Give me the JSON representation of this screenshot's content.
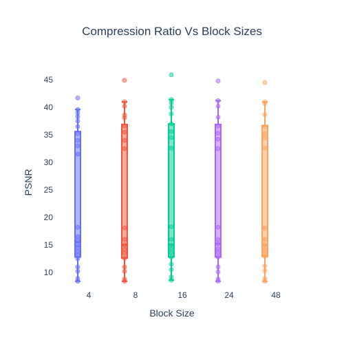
{
  "chart_data": {
    "type": "box",
    "title": "Compression Ratio Vs Block Sizes",
    "xlabel": "Block Size",
    "ylabel": "PSNR",
    "categories": [
      "4",
      "8",
      "16",
      "24",
      "48"
    ],
    "yticks": [
      10,
      15,
      20,
      25,
      30,
      35,
      40,
      45
    ],
    "ylim": [
      7,
      47
    ],
    "grid": false,
    "legend": "none",
    "series": [
      {
        "category": "4",
        "color": "#636efa",
        "q1": 12.8,
        "median": 15.5,
        "q3": 35.6,
        "lower": 8.4,
        "upper": 39.6,
        "points": [
          8.4,
          8.9,
          10.2,
          11.0,
          12.5,
          13.2,
          13.8,
          14.5,
          15.0,
          15.8,
          16.5,
          18.2,
          31.5,
          33.0,
          34.0,
          35.2,
          36.5,
          37.5,
          38.3,
          39.0,
          39.6,
          41.7
        ]
      },
      {
        "category": "8",
        "color": "#ef553b",
        "q1": 12.6,
        "median": 15.0,
        "q3": 36.9,
        "lower": 8.4,
        "upper": 41.0,
        "points": [
          8.4,
          8.8,
          10.2,
          11.0,
          12.6,
          13.5,
          14.2,
          15.0,
          16.0,
          18.1,
          32.5,
          34.0,
          35.5,
          36.6,
          38.1,
          38.6,
          40.2,
          41.0,
          44.9
        ]
      },
      {
        "category": "16",
        "color": "#00cc96",
        "q1": 12.8,
        "median": 15.0,
        "q3": 37.0,
        "lower": 8.6,
        "upper": 41.4,
        "points": [
          8.6,
          9.2,
          10.5,
          11.5,
          12.8,
          13.6,
          14.3,
          15.0,
          16.0,
          18.3,
          32.6,
          34.5,
          35.6,
          37.0,
          38.8,
          40.0,
          40.8,
          41.4,
          45.9
        ]
      },
      {
        "category": "24",
        "color": "#ab63fa",
        "q1": 12.8,
        "median": 15.2,
        "q3": 36.9,
        "lower": 8.4,
        "upper": 41.2,
        "points": [
          8.4,
          8.8,
          10.1,
          11.0,
          12.8,
          13.6,
          14.3,
          15.2,
          16.0,
          18.2,
          32.5,
          34.2,
          35.3,
          36.6,
          38.2,
          40.2,
          41.2,
          44.8
        ]
      },
      {
        "category": "48",
        "color": "#ffa15a",
        "q1": 12.9,
        "median": 15.0,
        "q3": 36.7,
        "lower": 8.4,
        "upper": 41.0,
        "points": [
          8.4,
          8.9,
          10.3,
          11.2,
          12.9,
          13.5,
          14.2,
          15.0,
          16.0,
          18.1,
          32.6,
          34.5,
          35.3,
          36.5,
          38.7,
          40.7,
          41.0,
          44.5
        ]
      }
    ]
  }
}
